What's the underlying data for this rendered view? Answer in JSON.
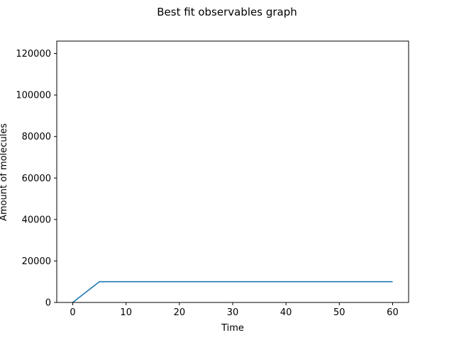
{
  "chart_data": {
    "type": "line",
    "title": "Best fit observables graph",
    "xlabel": "Time",
    "ylabel": "Amount of molecules",
    "xlim": [
      -3,
      63
    ],
    "ylim": [
      0,
      126000
    ],
    "x_ticks": [
      0,
      10,
      20,
      30,
      40,
      50,
      60
    ],
    "x_tick_labels": [
      "0",
      "10",
      "20",
      "30",
      "40",
      "50",
      "60"
    ],
    "y_ticks": [
      0,
      20000,
      40000,
      60000,
      80000,
      100000,
      120000
    ],
    "y_tick_labels": [
      "0",
      "20000",
      "40000",
      "60000",
      "80000",
      "100000",
      "120000"
    ],
    "grid": false,
    "series": [
      {
        "color": "#1f77b4",
        "x": [
          0,
          5,
          10,
          20,
          30,
          40,
          50,
          60
        ],
        "y": [
          0,
          10000,
          10000,
          10000,
          10000,
          10000,
          10000,
          10000
        ]
      }
    ]
  }
}
